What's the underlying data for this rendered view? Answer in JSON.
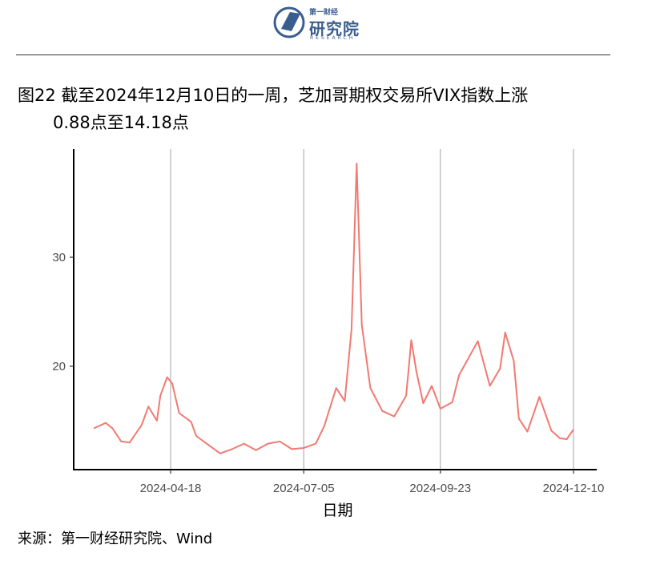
{
  "brand": {
    "name": "研究院",
    "sub_top": "第一财经",
    "sub_bottom": "RESEARCH",
    "color": "#3a5d8f"
  },
  "title": {
    "line1": "图22 截至2024年12月10日的一周，芝加哥期权交易所VIX指数上涨",
    "line2": "0.88点至14.18点"
  },
  "source": "来源：第一财经研究院、Wind",
  "chart_data": {
    "type": "line",
    "xlabel": "日期",
    "ylabel": "",
    "x_ticks": [
      "2024-04-18",
      "2024-07-05",
      "2024-09-23",
      "2024-12-10"
    ],
    "y_ticks": [
      20,
      30
    ],
    "xlim": [
      "2024-03-04",
      "2024-12-10"
    ],
    "ylim": [
      12,
      40
    ],
    "grid": "vertical-major",
    "line_color": "#f07a72",
    "series": [
      {
        "x": [
          "2024-03-04",
          "2024-03-11",
          "2024-03-15",
          "2024-03-20",
          "2024-03-25",
          "2024-04-01",
          "2024-04-05",
          "2024-04-10",
          "2024-04-12",
          "2024-04-16",
          "2024-04-19",
          "2024-04-23",
          "2024-04-30",
          "2024-05-03",
          "2024-05-10",
          "2024-05-17",
          "2024-05-24",
          "2024-05-31",
          "2024-06-07",
          "2024-06-14",
          "2024-06-21",
          "2024-06-28",
          "2024-07-05",
          "2024-07-12",
          "2024-07-17",
          "2024-07-24",
          "2024-07-29",
          "2024-08-02",
          "2024-08-05",
          "2024-08-08",
          "2024-08-13",
          "2024-08-20",
          "2024-08-27",
          "2024-09-03",
          "2024-09-06",
          "2024-09-09",
          "2024-09-13",
          "2024-09-18",
          "2024-09-23",
          "2024-09-30",
          "2024-10-04",
          "2024-10-10",
          "2024-10-15",
          "2024-10-22",
          "2024-10-28",
          "2024-10-31",
          "2024-11-05",
          "2024-11-08",
          "2024-11-13",
          "2024-11-20",
          "2024-11-27",
          "2024-12-02",
          "2024-12-06",
          "2024-12-10"
        ],
        "values": [
          14.3,
          14.8,
          14.3,
          13.1,
          13.0,
          14.6,
          16.3,
          15.0,
          17.3,
          19.0,
          18.4,
          15.7,
          14.9,
          13.6,
          12.8,
          12.0,
          12.4,
          12.9,
          12.3,
          12.9,
          13.1,
          12.4,
          12.5,
          12.9,
          14.5,
          18.0,
          16.8,
          23.4,
          38.6,
          23.8,
          18.0,
          15.9,
          15.4,
          17.3,
          22.4,
          19.5,
          16.6,
          18.2,
          16.1,
          16.7,
          19.2,
          20.9,
          22.3,
          18.2,
          19.8,
          23.1,
          20.5,
          15.2,
          14.0,
          17.2,
          14.1,
          13.4,
          13.3,
          14.2
        ]
      }
    ]
  }
}
